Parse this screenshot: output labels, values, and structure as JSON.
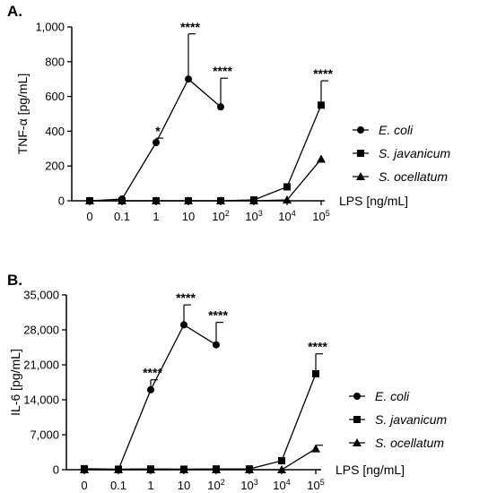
{
  "chart_data": [
    {
      "type": "line",
      "panel_label": "A.",
      "ylabel": "TNF-α [pg/mL]",
      "xlabel": "LPS [ng/mL]",
      "categories": [
        "0",
        "0.1",
        "1",
        "10",
        "10^2",
        "10^3",
        "10^4",
        "10^5"
      ],
      "ylim": [
        0,
        1000
      ],
      "y_ticks": [
        "0",
        "200",
        "400",
        "600",
        "800",
        "1,000"
      ],
      "series": [
        {
          "name": "E. coli",
          "marker": "circle",
          "values": [
            0,
            10,
            335,
            700,
            540,
            null,
            null,
            null
          ],
          "errors": [
            0,
            0,
            25,
            260,
            165,
            null,
            null,
            null
          ]
        },
        {
          "name": "S. javanicum",
          "marker": "square",
          "values": [
            0,
            0,
            0,
            0,
            0,
            5,
            80,
            550
          ],
          "errors": [
            0,
            0,
            0,
            0,
            0,
            0,
            0,
            140
          ]
        },
        {
          "name": "S. ocellatum",
          "marker": "triangle",
          "values": [
            0,
            0,
            0,
            0,
            0,
            0,
            5,
            240
          ],
          "errors": [
            0,
            0,
            0,
            0,
            0,
            0,
            0,
            0
          ]
        }
      ],
      "annotations": [
        "",
        "",
        "*",
        "****",
        "****",
        "",
        "",
        "****"
      ]
    },
    {
      "type": "line",
      "panel_label": "B.",
      "ylabel": "IL-6 [pg/mL]",
      "xlabel": "LPS [ng/mL]",
      "categories": [
        "0",
        "0.1",
        "1",
        "10",
        "10^2",
        "10^3",
        "10^4",
        "10^5"
      ],
      "ylim": [
        0,
        35000
      ],
      "y_ticks": [
        "0",
        "7,000",
        "14,000",
        "21,000",
        "28,000",
        "35,000"
      ],
      "series": [
        {
          "name": "E. coli",
          "marker": "circle",
          "values": [
            0,
            0,
            16000,
            29000,
            25000,
            null,
            null,
            null
          ],
          "errors": [
            0,
            0,
            2000,
            4000,
            4500,
            null,
            null,
            null
          ]
        },
        {
          "name": "S. javanicum",
          "marker": "square",
          "values": [
            200,
            100,
            150,
            100,
            150,
            150,
            1800,
            19200
          ],
          "errors": [
            0,
            0,
            0,
            0,
            0,
            0,
            0,
            4000
          ]
        },
        {
          "name": "S. ocellatum",
          "marker": "triangle",
          "values": [
            0,
            0,
            0,
            0,
            0,
            0,
            0,
            4200
          ],
          "errors": [
            0,
            0,
            0,
            0,
            0,
            0,
            0,
            700
          ]
        }
      ],
      "annotations": [
        "",
        "",
        "****",
        "****",
        "****",
        "",
        "",
        "****"
      ]
    }
  ]
}
